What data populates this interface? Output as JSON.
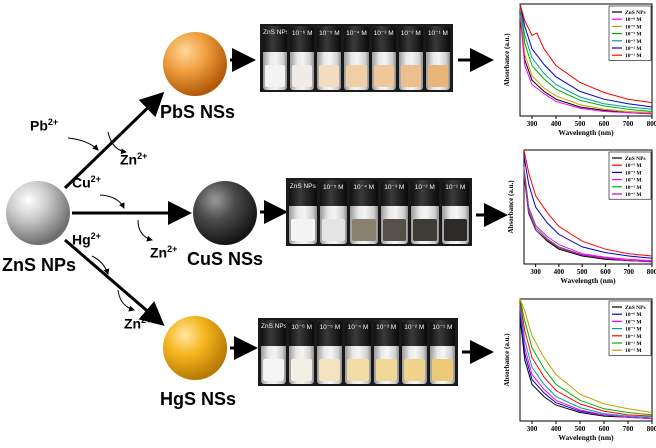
{
  "start": {
    "label": "ZnS NPs"
  },
  "ions": {
    "pb": "Pb",
    "cu": "Cu",
    "hg": "Hg",
    "zn": "Zn",
    "charge": "2+"
  },
  "products": {
    "pbs": {
      "label": "PbS NSs",
      "color": "#e08a1e"
    },
    "cus": {
      "label": "CuS NSs",
      "color": "#3a3a3a"
    },
    "hgs": {
      "label": "HgS NSs",
      "color": "#f0a818"
    }
  },
  "vial_rows": [
    {
      "name": "pbs",
      "labels": [
        "ZnS NPs",
        "10⁻⁶ M",
        "10⁻⁵ M",
        "10⁻⁴ M",
        "10⁻³ M",
        "10⁻² M",
        "10⁻¹ M"
      ],
      "liquid_colors": [
        "#f3f3f3",
        "#f0ebe6",
        "#f2dcc2",
        "#efcfa8",
        "#eec79a",
        "#ecbf8c",
        "#e8b47a"
      ]
    },
    {
      "name": "cus",
      "labels": [
        "ZnS NPs",
        "10⁻⁵ M",
        "10⁻⁴ M",
        "10⁻³ M",
        "10⁻² M",
        "10⁻¹ M"
      ],
      "liquid_colors": [
        "#f4f4f4",
        "#e4e4e4",
        "#8a8070",
        "#555048",
        "#3f3b36",
        "#2b2a28"
      ]
    },
    {
      "name": "hgs",
      "labels": [
        "ZnS NPs",
        "10⁻⁶ M",
        "10⁻⁵ M",
        "10⁻⁴ M",
        "10⁻³ M",
        "10⁻² M",
        "10⁻¹ M"
      ],
      "liquid_colors": [
        "#f5f5f5",
        "#f2efe4",
        "#f3e4bf",
        "#f2dca6",
        "#f1d796",
        "#f0d28a",
        "#eec978"
      ]
    }
  ],
  "chart_data": [
    {
      "type": "line",
      "title": "",
      "xlabel": "Wavelength (nm)",
      "ylabel": "Absorbance (a.u.)",
      "xlim": [
        250,
        800
      ],
      "ylim": [
        0,
        1
      ],
      "xticks": [
        300,
        400,
        500,
        600,
        700,
        800
      ],
      "legend": "top-right",
      "series": [
        {
          "name": "ZnS NPs",
          "color": "#000000",
          "x": [
            250,
            270,
            300,
            350,
            400,
            500,
            600,
            700,
            800
          ],
          "y": [
            0.95,
            0.5,
            0.32,
            0.22,
            0.15,
            0.08,
            0.05,
            0.03,
            0.02
          ]
        },
        {
          "name": "10⁻⁶ M",
          "color": "#ff00ff",
          "x": [
            250,
            270,
            300,
            350,
            400,
            500,
            600,
            700,
            800
          ],
          "y": [
            0.9,
            0.45,
            0.28,
            0.2,
            0.13,
            0.07,
            0.04,
            0.03,
            0.02
          ]
        },
        {
          "name": "10⁻⁵ M",
          "color": "#c0a000",
          "x": [
            250,
            270,
            300,
            350,
            400,
            500,
            600,
            700,
            800
          ],
          "y": [
            0.98,
            0.55,
            0.36,
            0.25,
            0.18,
            0.1,
            0.06,
            0.04,
            0.03
          ]
        },
        {
          "name": "10⁻⁴ M",
          "color": "#00b000",
          "x": [
            250,
            270,
            300,
            350,
            400,
            500,
            600,
            700,
            800
          ],
          "y": [
            1.0,
            0.65,
            0.45,
            0.33,
            0.24,
            0.14,
            0.09,
            0.06,
            0.04
          ]
        },
        {
          "name": "10⁻³ M",
          "color": "#00a0a0",
          "x": [
            250,
            270,
            300,
            350,
            400,
            500,
            600,
            700,
            800
          ],
          "y": [
            1.0,
            0.72,
            0.52,
            0.38,
            0.28,
            0.17,
            0.11,
            0.08,
            0.06
          ]
        },
        {
          "name": "10⁻² M",
          "color": "#0000cc",
          "x": [
            250,
            270,
            300,
            350,
            400,
            500,
            600,
            700,
            800
          ],
          "y": [
            1.0,
            0.8,
            0.6,
            0.46,
            0.35,
            0.22,
            0.15,
            0.11,
            0.08
          ]
        },
        {
          "name": "10⁻¹ M",
          "color": "#ff0000",
          "x": [
            250,
            270,
            300,
            320,
            350,
            400,
            500,
            600,
            700,
            800
          ],
          "y": [
            1.0,
            0.85,
            0.72,
            0.74,
            0.6,
            0.45,
            0.3,
            0.21,
            0.15,
            0.12
          ]
        }
      ]
    },
    {
      "type": "line",
      "title": "",
      "xlabel": "Wavelength (nm)",
      "ylabel": "Absorbance (a.u.)",
      "xlim": [
        250,
        800
      ],
      "ylim": [
        0,
        1
      ],
      "xticks": [
        300,
        400,
        500,
        600,
        700,
        800
      ],
      "legend": "top-right",
      "series": [
        {
          "name": "ZnS NPs",
          "color": "#000000",
          "x": [
            250,
            270,
            300,
            350,
            400,
            500,
            600,
            700,
            800
          ],
          "y": [
            0.8,
            0.45,
            0.3,
            0.2,
            0.13,
            0.07,
            0.04,
            0.03,
            0.02
          ]
        },
        {
          "name": "10⁻⁵ M",
          "color": "#ff0000",
          "x": [
            250,
            270,
            300,
            350,
            400,
            500,
            600,
            700,
            800
          ],
          "y": [
            1.0,
            0.8,
            0.6,
            0.45,
            0.33,
            0.2,
            0.13,
            0.09,
            0.07
          ]
        },
        {
          "name": "10⁻⁴ M",
          "color": "#0000cc",
          "x": [
            250,
            270,
            300,
            350,
            400,
            500,
            600,
            700,
            800
          ],
          "y": [
            0.95,
            0.7,
            0.5,
            0.36,
            0.26,
            0.15,
            0.1,
            0.07,
            0.05
          ]
        },
        {
          "name": "10⁻³ M",
          "color": "#ff00ff",
          "x": [
            250,
            270,
            300,
            350,
            400,
            500,
            600,
            700,
            800
          ],
          "y": [
            0.85,
            0.5,
            0.34,
            0.24,
            0.17,
            0.09,
            0.06,
            0.04,
            0.03
          ]
        },
        {
          "name": "10⁻² M",
          "color": "#00b000",
          "x": [
            250,
            270,
            300,
            350,
            400,
            500,
            600,
            700,
            800
          ],
          "y": [
            0.82,
            0.48,
            0.32,
            0.22,
            0.15,
            0.08,
            0.05,
            0.03,
            0.02
          ]
        },
        {
          "name": "10⁻¹ M",
          "color": "#c000c0",
          "x": [
            250,
            270,
            300,
            350,
            400,
            500,
            600,
            700,
            800
          ],
          "y": [
            0.78,
            0.44,
            0.3,
            0.21,
            0.14,
            0.08,
            0.05,
            0.03,
            0.02
          ]
        }
      ]
    },
    {
      "type": "line",
      "title": "",
      "xlabel": "Wavelength (nm)",
      "ylabel": "Absorbance (a.u.)",
      "xlim": [
        250,
        800
      ],
      "ylim": [
        0,
        1
      ],
      "xticks": [
        300,
        400,
        500,
        600,
        700,
        800
      ],
      "legend": "top-right",
      "series": [
        {
          "name": "ZnS NPs",
          "color": "#000000",
          "x": [
            250,
            270,
            300,
            350,
            400,
            500,
            600,
            700,
            800
          ],
          "y": [
            0.85,
            0.5,
            0.3,
            0.2,
            0.13,
            0.07,
            0.04,
            0.03,
            0.02
          ]
        },
        {
          "name": "10⁻⁶ M",
          "color": "#0000cc",
          "x": [
            250,
            270,
            300,
            350,
            400,
            500,
            600,
            700,
            800
          ],
          "y": [
            0.9,
            0.55,
            0.34,
            0.23,
            0.15,
            0.08,
            0.05,
            0.03,
            0.02
          ]
        },
        {
          "name": "10⁻⁵ M",
          "color": "#ff00ff",
          "x": [
            250,
            270,
            300,
            350,
            400,
            500,
            600,
            700,
            800
          ],
          "y": [
            0.93,
            0.6,
            0.38,
            0.26,
            0.17,
            0.09,
            0.05,
            0.03,
            0.02
          ]
        },
        {
          "name": "10⁻⁴ M",
          "color": "#00a0a0",
          "x": [
            250,
            270,
            300,
            350,
            400,
            500,
            600,
            700,
            800
          ],
          "y": [
            0.96,
            0.66,
            0.44,
            0.3,
            0.2,
            0.11,
            0.06,
            0.04,
            0.03
          ]
        },
        {
          "name": "10⁻³ M",
          "color": "#ff0000",
          "x": [
            250,
            270,
            300,
            350,
            400,
            500,
            600,
            700,
            800
          ],
          "y": [
            0.98,
            0.74,
            0.52,
            0.36,
            0.25,
            0.14,
            0.08,
            0.05,
            0.04
          ]
        },
        {
          "name": "10⁻² M",
          "color": "#00b000",
          "x": [
            250,
            270,
            300,
            350,
            400,
            500,
            600,
            700,
            800
          ],
          "y": [
            1.0,
            0.82,
            0.6,
            0.43,
            0.3,
            0.17,
            0.1,
            0.07,
            0.05
          ]
        },
        {
          "name": "10⁻¹ M",
          "color": "#c0a000",
          "x": [
            250,
            270,
            300,
            350,
            400,
            500,
            600,
            700,
            800
          ],
          "y": [
            1.0,
            0.9,
            0.7,
            0.52,
            0.38,
            0.22,
            0.14,
            0.1,
            0.07
          ]
        }
      ]
    }
  ]
}
